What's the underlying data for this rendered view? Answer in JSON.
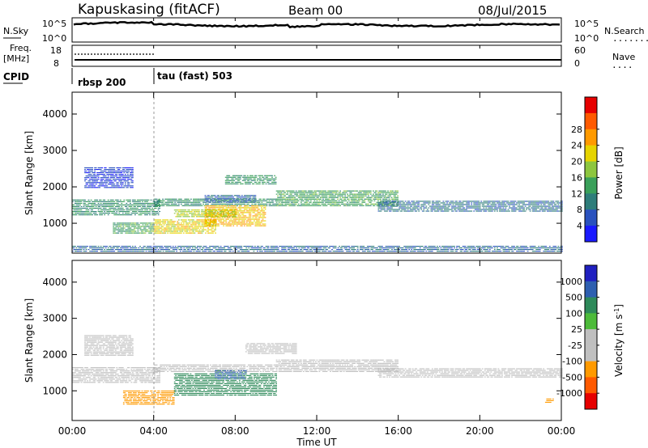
{
  "header": {
    "station": "Kapuskasing (fitACF)",
    "beam": "Beam 00",
    "date": "08/Jul/2015"
  },
  "noise_panel": {
    "left_label": "N.Sky",
    "left_ticks": [
      "10^5",
      "10^0"
    ],
    "right_ticks": [
      "10^5",
      "10^0"
    ],
    "right_label": "N.Search",
    "right_legend": "......."
  },
  "freq_panel": {
    "left_label_1": "Freq.",
    "left_label_2": "[MHz]",
    "left_ticks": [
      "18",
      "8"
    ],
    "right_ticks": [
      "60",
      "0"
    ],
    "right_label": "Nave",
    "right_legend": "...."
  },
  "cpid": {
    "label": "CPID",
    "segments": [
      {
        "name": "rbsp 200",
        "start_hour": 0
      },
      {
        "name": "tau (fast) 503",
        "start_hour": 4.0
      }
    ]
  },
  "chart_data": [
    {
      "type": "heatmap",
      "title": "",
      "xlabel": "Time UT",
      "ylabel": "Slant Range [km]",
      "xlim": [
        0,
        24
      ],
      "ylim": [
        180,
        4600
      ],
      "x_ticks": [
        "00:00",
        "04:00",
        "08:00",
        "12:00",
        "16:00",
        "20:00",
        "00:00"
      ],
      "y_ticks": [
        1000,
        2000,
        3000,
        4000
      ],
      "colorbar": {
        "label": "Power [dB]",
        "ticks": [
          4,
          8,
          12,
          16,
          20,
          24,
          28
        ],
        "colors": [
          "#1a1aff",
          "#2a52be",
          "#2e7d7a",
          "#3aa05a",
          "#8dc63f",
          "#e6d400",
          "#ff9a00",
          "#ff5a00",
          "#e60000"
        ]
      },
      "regions": [
        {
          "t0": 0.0,
          "t1": 4.3,
          "r0": 1200,
          "r1": 1650,
          "v": 12
        },
        {
          "t0": 0.6,
          "t1": 3.0,
          "r0": 1950,
          "r1": 2500,
          "v": 5
        },
        {
          "t0": 2.0,
          "t1": 4.0,
          "r0": 700,
          "r1": 1000,
          "v": 14
        },
        {
          "t0": 4.0,
          "t1": 10.0,
          "r0": 1450,
          "r1": 1650,
          "v": 12
        },
        {
          "t0": 4.0,
          "t1": 7.0,
          "r0": 700,
          "r1": 1100,
          "v": 22
        },
        {
          "t0": 6.5,
          "t1": 9.5,
          "r0": 900,
          "r1": 1450,
          "v": 24
        },
        {
          "t0": 5.0,
          "t1": 8.0,
          "r0": 1150,
          "r1": 1350,
          "v": 19
        },
        {
          "t0": 6.5,
          "t1": 9.0,
          "r0": 1550,
          "r1": 1750,
          "v": 8
        },
        {
          "t0": 7.5,
          "t1": 10.0,
          "r0": 2050,
          "r1": 2300,
          "v": 13
        },
        {
          "t0": 10.0,
          "t1": 16.0,
          "r0": 1450,
          "r1": 1900,
          "v": 14
        },
        {
          "t0": 15.0,
          "t1": 24.0,
          "r0": 1300,
          "r1": 1600,
          "v": 9
        },
        {
          "t0": 0.0,
          "t1": 24.0,
          "r0": 200,
          "r1": 380,
          "v": 8
        }
      ]
    },
    {
      "type": "heatmap",
      "title": "",
      "xlabel": "Time UT",
      "ylabel": "Slant Range [km]",
      "xlim": [
        0,
        24
      ],
      "ylim": [
        180,
        4600
      ],
      "x_ticks": [
        "00:00",
        "04:00",
        "08:00",
        "12:00",
        "16:00",
        "20:00",
        "00:00"
      ],
      "y_ticks": [
        1000,
        2000,
        3000,
        4000
      ],
      "colorbar": {
        "label": "Velocity [m s",
        "label_sup": "-1",
        "label_end": "]",
        "ticks": [
          1000,
          500,
          100,
          25,
          -25,
          -100,
          -500,
          -1000
        ],
        "colors": [
          "#2020c0",
          "#2e5fb0",
          "#2e8a5a",
          "#4dbb3a",
          "#bfbfbf",
          "#c0c0c0",
          "#ff9a00",
          "#ff5a00",
          "#e60000"
        ]
      },
      "regions": [
        {
          "t0": 0.0,
          "t1": 4.3,
          "r0": 1200,
          "r1": 1650,
          "v": 0
        },
        {
          "t0": 0.6,
          "t1": 3.0,
          "r0": 1950,
          "r1": 2500,
          "v": -20
        },
        {
          "t0": 2.5,
          "t1": 5.0,
          "r0": 600,
          "r1": 1000,
          "v": -200
        },
        {
          "t0": 4.0,
          "t1": 10.0,
          "r0": 1500,
          "r1": 1700,
          "v": 0
        },
        {
          "t0": 5.0,
          "t1": 10.0,
          "r0": 850,
          "r1": 1450,
          "v": 200
        },
        {
          "t0": 7.0,
          "t1": 8.5,
          "r0": 1300,
          "r1": 1550,
          "v": 600
        },
        {
          "t0": 8.5,
          "t1": 11.0,
          "r0": 2000,
          "r1": 2300,
          "v": 0
        },
        {
          "t0": 10.0,
          "t1": 16.0,
          "r0": 1500,
          "r1": 1850,
          "v": 0
        },
        {
          "t0": 15.0,
          "t1": 24.0,
          "r0": 1350,
          "r1": 1600,
          "v": 0
        },
        {
          "t0": 23.2,
          "t1": 23.6,
          "r0": 650,
          "r1": 750,
          "v": -250
        }
      ]
    }
  ]
}
